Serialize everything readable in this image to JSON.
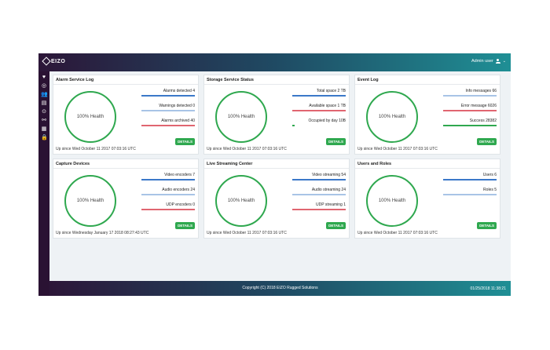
{
  "app": {
    "logo_text": "EIZO"
  },
  "header": {
    "user": "Admin user"
  },
  "sidebar": {
    "icons": [
      "heart-icon",
      "target-icon",
      "users-icon",
      "document-icon",
      "record-icon",
      "share-icon",
      "file-icon",
      "lock-icon"
    ]
  },
  "cards": [
    {
      "title": "Alarm Service Log",
      "health": "100% Health",
      "stats": [
        {
          "label": "Alarms detected 4",
          "color": "#3b78c9"
        },
        {
          "label": "Warnings detected 0",
          "color": "#a8c4e6"
        },
        {
          "label": "Alarms archived 40",
          "color": "#e06570"
        }
      ],
      "uptime": "Up since Wed October 11 2017 07:03:16 UTC",
      "button": "DETAILS"
    },
    {
      "title": "Storage Service Status",
      "health": "100% Health",
      "stats": [
        {
          "label": "Total space 2 TB",
          "color": "#3b78c9"
        },
        {
          "label": "Available space 1 TB",
          "color": "#e06570"
        },
        {
          "label": "Occupied by day 10B",
          "color": "#2fa84f"
        }
      ],
      "uptime": "Up since Wed October 11 2017 07:03:16 UTC",
      "button": "DETAILS"
    },
    {
      "title": "Event Log",
      "health": "100% Health",
      "stats": [
        {
          "label": "Info messages 66",
          "color": "#a8c4e6"
        },
        {
          "label": "Error message 6026",
          "color": "#e06570"
        },
        {
          "label": "Success 28382",
          "color": "#2fa84f"
        }
      ],
      "uptime": "Up since Wed October 11 2017 07:03:16 UTC",
      "button": "DETAILS"
    },
    {
      "title": "Capture Devices",
      "health": "100% Health",
      "stats": [
        {
          "label": "Video encoders 7",
          "color": "#3b78c9"
        },
        {
          "label": "Audio encoders 24",
          "color": "#a8c4e6"
        },
        {
          "label": "UDP encoders 0",
          "color": "#e06570"
        }
      ],
      "uptime": "Up since Wednesday January 17 2018 08:27:43 UTC",
      "button": "DETAILS"
    },
    {
      "title": "Live Streaming Center",
      "health": "100% Health",
      "stats": [
        {
          "label": "Video streaming 54",
          "color": "#3b78c9"
        },
        {
          "label": "Audio streaming 24",
          "color": "#a8c4e6"
        },
        {
          "label": "UDP streaming 1",
          "color": "#e06570"
        }
      ],
      "uptime": "Up since Wed October 11 2017 07:03:16 UTC",
      "button": "DETAILS"
    },
    {
      "title": "Users and Roles",
      "health": "100% Health",
      "stats": [
        {
          "label": "Users 6",
          "color": "#3b78c9"
        },
        {
          "label": "Roles 5",
          "color": "#a8c4e6"
        }
      ],
      "uptime": "Up since Wed October 11 2017 07:03:16 UTC",
      "button": "DETAILS"
    }
  ],
  "footer": {
    "copyright": "Copyright (C) 2018 EIZO Rugged Solutions",
    "clock": "01/25/2018 11:38:21"
  }
}
